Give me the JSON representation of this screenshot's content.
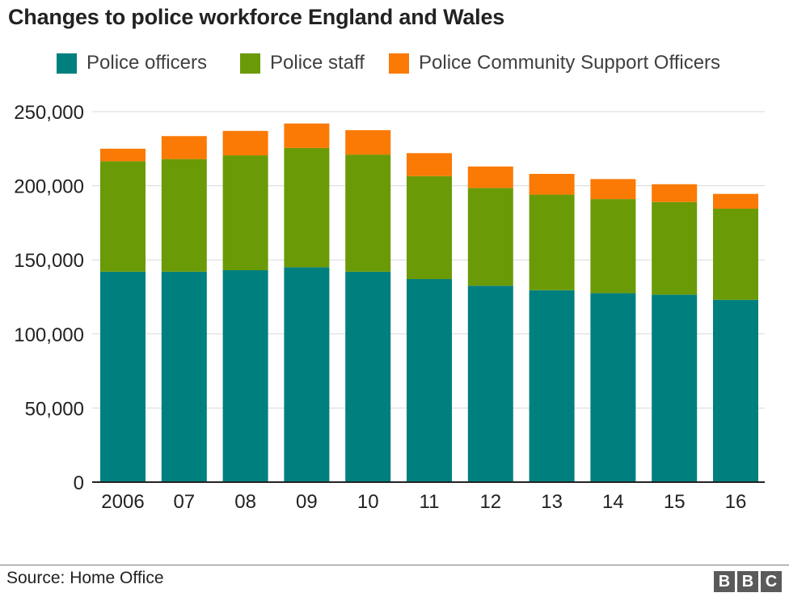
{
  "header": {
    "title": "Changes to police workforce England and Wales"
  },
  "footer": {
    "source": "Source: Home Office",
    "logo_letters": [
      "B",
      "B",
      "C"
    ]
  },
  "chart_data": {
    "type": "bar",
    "stacked": true,
    "title": "Changes to police workforce England and Wales",
    "xlabel": "",
    "ylabel": "",
    "categories": [
      "2006",
      "07",
      "08",
      "09",
      "10",
      "11",
      "12",
      "13",
      "14",
      "15",
      "16"
    ],
    "series": [
      {
        "name": "Police officers",
        "color": "#007f7f",
        "values": [
          142000,
          142000,
          143000,
          145000,
          142000,
          137000,
          132500,
          129500,
          127500,
          126500,
          123000
        ]
      },
      {
        "name": "Police staff",
        "color": "#6b9a07",
        "values": [
          74500,
          76000,
          77500,
          80500,
          79000,
          69500,
          66000,
          64500,
          63500,
          62500,
          61500
        ]
      },
      {
        "name": "Police Community Support Officers",
        "color": "#fa7a05",
        "values": [
          8500,
          15500,
          16500,
          16500,
          16500,
          15500,
          14500,
          14000,
          13500,
          12000,
          10000
        ]
      }
    ],
    "ylim": [
      0,
      250000
    ],
    "yticks": [
      0,
      50000,
      100000,
      150000,
      200000,
      250000
    ],
    "ytick_labels": [
      "0",
      "50,000",
      "100,000",
      "150,000",
      "200,000",
      "250,000"
    ],
    "grid": true,
    "legend": "top"
  }
}
